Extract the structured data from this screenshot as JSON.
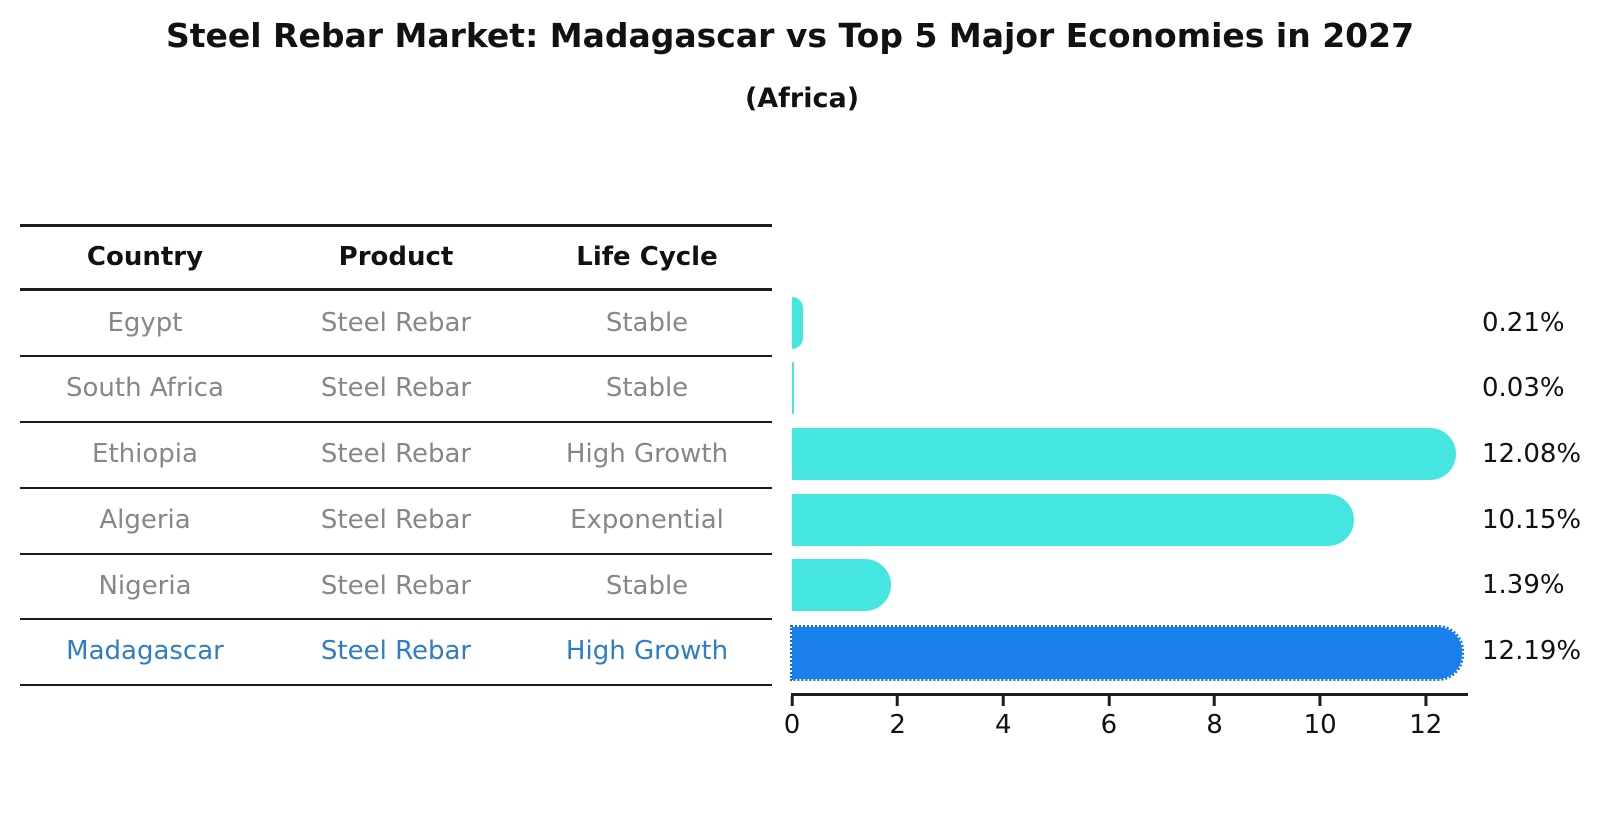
{
  "title": "Steel Rebar Market: Madagascar vs Top 5 Major Economies in 2027",
  "subtitle": "(Africa)",
  "table": {
    "columns": [
      "Country",
      "Product",
      "Life Cycle"
    ],
    "rows": [
      {
        "country": "Egypt",
        "product": "Steel Rebar",
        "life_cycle": "Stable",
        "highlight": false
      },
      {
        "country": "South Africa",
        "product": "Steel Rebar",
        "life_cycle": "Stable",
        "highlight": false
      },
      {
        "country": "Ethiopia",
        "product": "Steel Rebar",
        "life_cycle": "High Growth",
        "highlight": false
      },
      {
        "country": "Algeria",
        "product": "Steel Rebar",
        "life_cycle": "Exponential",
        "highlight": false
      },
      {
        "country": "Nigeria",
        "product": "Steel Rebar",
        "life_cycle": "Stable",
        "highlight": false
      },
      {
        "country": "Madagascar",
        "product": "Steel Rebar",
        "life_cycle": "High Growth",
        "highlight": true
      }
    ]
  },
  "chart_data": {
    "type": "bar",
    "orientation": "horizontal",
    "title": "Steel Rebar Market: Madagascar vs Top 5 Major Economies in 2027",
    "subtitle": "(Africa)",
    "categories": [
      "Egypt",
      "South Africa",
      "Ethiopia",
      "Algeria",
      "Nigeria",
      "Madagascar"
    ],
    "values": [
      0.21,
      0.03,
      12.08,
      10.15,
      1.39,
      12.19
    ],
    "value_labels": [
      "0.21%",
      "0.03%",
      "12.08%",
      "10.15%",
      "1.39%",
      "12.19%"
    ],
    "unit": "%",
    "x_ticks": [
      0,
      2,
      4,
      6,
      8,
      10,
      12
    ],
    "xlim": [
      0,
      12.8
    ],
    "grid": false,
    "legend": false,
    "bar_color": "#46E6E0",
    "highlight_bar_color": "#1980EB",
    "highlight_index": 5
  },
  "colors": {
    "accent_text": "#2E7DC8",
    "row_text": "#878787",
    "heading_text": "#111111",
    "line": "#1c1c1c"
  }
}
